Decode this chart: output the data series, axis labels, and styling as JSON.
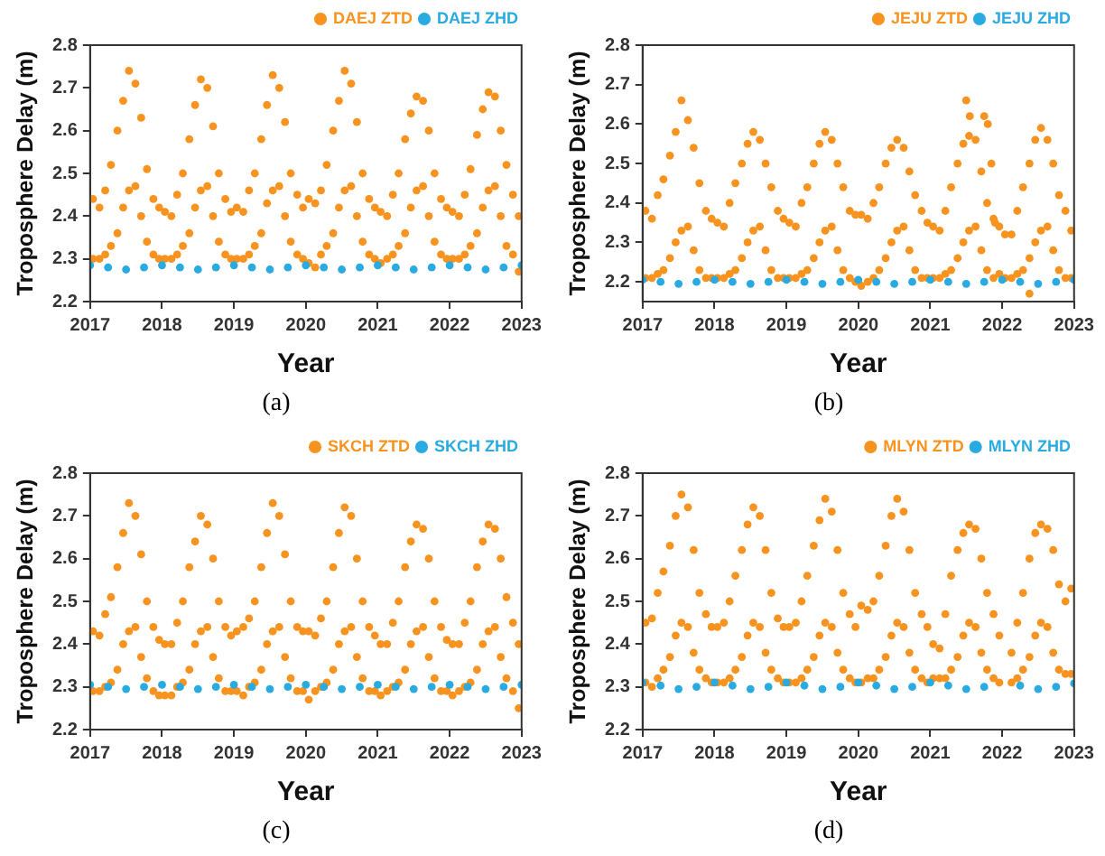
{
  "chart_data": [
    {
      "type": "scatter",
      "xlabel": "Year",
      "ylabel": "Troposphere Delay (m)",
      "annotations": [
        "(a)"
      ],
      "xlim": [
        2017,
        2023
      ],
      "xticks": [
        2017,
        2018,
        2019,
        2020,
        2021,
        2022,
        2023
      ],
      "ylim": [
        2.2,
        2.8
      ],
      "yticks": [
        2.2,
        2.3,
        2.4,
        2.5,
        2.6,
        2.7,
        2.8
      ],
      "legend": "top right",
      "marker": "circle",
      "series": [
        {
          "name": "DAEJ ZTD",
          "color": "#f7931e",
          "x": [
            2017.04,
            2017.04,
            2017.13,
            2017.13,
            2017.21,
            2017.21,
            2017.29,
            2017.29,
            2017.38,
            2017.38,
            2017.46,
            2017.46,
            2017.54,
            2017.54,
            2017.63,
            2017.63,
            2017.71,
            2017.71,
            2017.79,
            2017.79,
            2017.88,
            2017.88,
            2017.96,
            2017.96,
            2018.04,
            2018.04,
            2018.13,
            2018.13,
            2018.21,
            2018.21,
            2018.29,
            2018.29,
            2018.38,
            2018.38,
            2018.46,
            2018.46,
            2018.54,
            2018.54,
            2018.63,
            2018.63,
            2018.71,
            2018.71,
            2018.79,
            2018.79,
            2018.88,
            2018.88,
            2018.96,
            2018.96,
            2019.04,
            2019.04,
            2019.13,
            2019.13,
            2019.21,
            2019.21,
            2019.29,
            2019.29,
            2019.38,
            2019.38,
            2019.46,
            2019.46,
            2019.54,
            2019.54,
            2019.63,
            2019.63,
            2019.71,
            2019.71,
            2019.79,
            2019.79,
            2019.88,
            2019.88,
            2019.96,
            2019.96,
            2020.04,
            2020.04,
            2020.13,
            2020.13,
            2020.21,
            2020.21,
            2020.29,
            2020.29,
            2020.38,
            2020.38,
            2020.46,
            2020.46,
            2020.54,
            2020.54,
            2020.63,
            2020.63,
            2020.71,
            2020.71,
            2020.79,
            2020.79,
            2020.88,
            2020.88,
            2020.96,
            2020.96,
            2021.04,
            2021.04,
            2021.13,
            2021.13,
            2021.21,
            2021.21,
            2021.29,
            2021.29,
            2021.38,
            2021.38,
            2021.46,
            2021.46,
            2021.54,
            2021.54,
            2021.63,
            2021.63,
            2021.71,
            2021.71,
            2021.79,
            2021.79,
            2021.88,
            2021.88,
            2021.96,
            2021.96,
            2022.04,
            2022.04,
            2022.13,
            2022.13,
            2022.21,
            2022.21,
            2022.29,
            2022.29,
            2022.38,
            2022.38,
            2022.46,
            2022.46,
            2022.54,
            2022.54,
            2022.63,
            2022.63,
            2022.71,
            2022.71,
            2022.79,
            2022.79,
            2022.88,
            2022.88,
            2022.96,
            2022.96
          ],
          "values": [
            2.3,
            2.44,
            2.3,
            2.42,
            2.31,
            2.46,
            2.33,
            2.52,
            2.36,
            2.6,
            2.42,
            2.67,
            2.46,
            2.74,
            2.47,
            2.71,
            2.4,
            2.63,
            2.34,
            2.51,
            2.31,
            2.44,
            2.3,
            2.42,
            2.3,
            2.41,
            2.3,
            2.4,
            2.31,
            2.45,
            2.33,
            2.5,
            2.36,
            2.58,
            2.42,
            2.66,
            2.46,
            2.72,
            2.47,
            2.7,
            2.4,
            2.61,
            2.34,
            2.5,
            2.31,
            2.44,
            2.3,
            2.41,
            2.3,
            2.42,
            2.3,
            2.41,
            2.31,
            2.46,
            2.33,
            2.5,
            2.36,
            2.58,
            2.43,
            2.66,
            2.46,
            2.73,
            2.47,
            2.7,
            2.4,
            2.62,
            2.34,
            2.5,
            2.31,
            2.45,
            2.3,
            2.42,
            2.29,
            2.44,
            2.28,
            2.43,
            2.31,
            2.46,
            2.33,
            2.52,
            2.36,
            2.6,
            2.42,
            2.67,
            2.46,
            2.74,
            2.47,
            2.71,
            2.4,
            2.62,
            2.34,
            2.5,
            2.31,
            2.44,
            2.3,
            2.42,
            2.29,
            2.41,
            2.3,
            2.4,
            2.31,
            2.45,
            2.33,
            2.5,
            2.36,
            2.58,
            2.42,
            2.64,
            2.46,
            2.68,
            2.47,
            2.67,
            2.4,
            2.6,
            2.34,
            2.5,
            2.31,
            2.44,
            2.3,
            2.42,
            2.3,
            2.41,
            2.3,
            2.4,
            2.31,
            2.45,
            2.33,
            2.51,
            2.36,
            2.59,
            2.42,
            2.65,
            2.46,
            2.69,
            2.47,
            2.68,
            2.4,
            2.6,
            2.33,
            2.52,
            2.31,
            2.45,
            2.27,
            2.4
          ]
        },
        {
          "name": "DAEJ ZHD",
          "color": "#29abe2",
          "x": [
            2017,
            2017.25,
            2017.5,
            2017.75,
            2018,
            2018.25,
            2018.5,
            2018.75,
            2019,
            2019.25,
            2019.5,
            2019.75,
            2020,
            2020.25,
            2020.5,
            2020.75,
            2021,
            2021.25,
            2021.5,
            2021.75,
            2022,
            2022.25,
            2022.5,
            2022.75,
            2023
          ],
          "values": [
            2.285,
            2.28,
            2.275,
            2.28,
            2.285,
            2.28,
            2.275,
            2.28,
            2.285,
            2.28,
            2.275,
            2.28,
            2.285,
            2.28,
            2.275,
            2.28,
            2.285,
            2.28,
            2.275,
            2.28,
            2.285,
            2.28,
            2.275,
            2.28,
            2.285
          ]
        }
      ]
    },
    {
      "type": "scatter",
      "xlabel": "Year",
      "ylabel": "Troposphere Delay (m)",
      "annotations": [
        "(b)"
      ],
      "xlim": [
        2017,
        2023
      ],
      "xticks": [
        2017,
        2018,
        2019,
        2020,
        2021,
        2022,
        2023
      ],
      "ylim": [
        2.15,
        2.8
      ],
      "yticks": [
        2.2,
        2.3,
        2.4,
        2.5,
        2.6,
        2.7,
        2.8
      ],
      "legend": "top right",
      "marker": "circle",
      "series": [
        {
          "name": "JEJU ZTD",
          "color": "#f7931e",
          "x": [
            2017.04,
            2017.04,
            2017.13,
            2017.13,
            2017.21,
            2017.21,
            2017.29,
            2017.29,
            2017.38,
            2017.38,
            2017.46,
            2017.46,
            2017.54,
            2017.54,
            2017.63,
            2017.63,
            2017.71,
            2017.71,
            2017.79,
            2017.79,
            2017.88,
            2017.88,
            2017.96,
            2017.96,
            2018.04,
            2018.04,
            2018.13,
            2018.13,
            2018.21,
            2018.21,
            2018.29,
            2018.29,
            2018.38,
            2018.38,
            2018.46,
            2018.46,
            2018.54,
            2018.54,
            2018.63,
            2018.63,
            2018.71,
            2018.71,
            2018.79,
            2018.79,
            2018.88,
            2018.88,
            2018.96,
            2018.96,
            2019.04,
            2019.04,
            2019.13,
            2019.13,
            2019.21,
            2019.21,
            2019.29,
            2019.29,
            2019.38,
            2019.38,
            2019.46,
            2019.46,
            2019.54,
            2019.54,
            2019.63,
            2019.63,
            2019.71,
            2019.71,
            2019.79,
            2019.79,
            2019.88,
            2019.88,
            2019.96,
            2019.96,
            2020.04,
            2020.04,
            2020.13,
            2020.13,
            2020.21,
            2020.21,
            2020.29,
            2020.29,
            2020.38,
            2020.38,
            2020.46,
            2020.46,
            2020.54,
            2020.54,
            2020.63,
            2020.63,
            2020.71,
            2020.71,
            2020.79,
            2020.79,
            2020.88,
            2020.88,
            2020.96,
            2020.96,
            2021.04,
            2021.04,
            2021.13,
            2021.13,
            2021.21,
            2021.21,
            2021.29,
            2021.29,
            2021.38,
            2021.38,
            2021.46,
            2021.46,
            2021.54,
            2021.54,
            2021.63,
            2021.63,
            2021.71,
            2021.71,
            2021.79,
            2021.79,
            2021.88,
            2021.88,
            2021.96,
            2021.96,
            2022.04,
            2022.04,
            2022.13,
            2022.13,
            2022.21,
            2022.21,
            2022.29,
            2022.29,
            2022.38,
            2022.38,
            2022.46,
            2022.46,
            2022.54,
            2022.54,
            2022.63,
            2022.63,
            2022.71,
            2022.71,
            2022.79,
            2022.79,
            2022.88,
            2022.88,
            2022.96,
            2022.96,
            2021.5,
            2021.55,
            2021.75,
            2021.8,
            2021.85,
            2021.9,
            2022.38
          ],
          "values": [
            2.21,
            2.38,
            2.21,
            2.36,
            2.22,
            2.42,
            2.23,
            2.46,
            2.26,
            2.52,
            2.3,
            2.58,
            2.33,
            2.66,
            2.34,
            2.61,
            2.28,
            2.54,
            2.23,
            2.45,
            2.21,
            2.38,
            2.21,
            2.36,
            2.21,
            2.35,
            2.21,
            2.34,
            2.22,
            2.4,
            2.23,
            2.45,
            2.26,
            2.5,
            2.3,
            2.55,
            2.33,
            2.58,
            2.34,
            2.56,
            2.28,
            2.5,
            2.23,
            2.44,
            2.21,
            2.38,
            2.21,
            2.36,
            2.21,
            2.35,
            2.21,
            2.34,
            2.22,
            2.4,
            2.23,
            2.44,
            2.26,
            2.5,
            2.3,
            2.55,
            2.33,
            2.58,
            2.34,
            2.56,
            2.28,
            2.5,
            2.23,
            2.44,
            2.21,
            2.38,
            2.2,
            2.37,
            2.19,
            2.37,
            2.2,
            2.36,
            2.21,
            2.4,
            2.23,
            2.44,
            2.26,
            2.5,
            2.3,
            2.54,
            2.33,
            2.56,
            2.34,
            2.54,
            2.28,
            2.48,
            2.23,
            2.42,
            2.21,
            2.38,
            2.21,
            2.35,
            2.21,
            2.34,
            2.21,
            2.33,
            2.22,
            2.38,
            2.23,
            2.44,
            2.26,
            2.5,
            2.3,
            2.55,
            2.33,
            2.57,
            2.34,
            2.56,
            2.28,
            2.48,
            2.23,
            2.4,
            2.21,
            2.36,
            2.22,
            2.34,
            2.21,
            2.32,
            2.21,
            2.32,
            2.22,
            2.38,
            2.23,
            2.44,
            2.26,
            2.5,
            2.3,
            2.56,
            2.33,
            2.59,
            2.34,
            2.56,
            2.28,
            2.5,
            2.23,
            2.42,
            2.21,
            2.38,
            2.21,
            2.33,
            2.66,
            2.62,
            2.62,
            2.6,
            2.5,
            2.35,
            2.17
          ]
        },
        {
          "name": "JEJU ZHD",
          "color": "#29abe2",
          "x": [
            2017,
            2017.25,
            2017.5,
            2017.75,
            2018,
            2018.25,
            2018.5,
            2018.75,
            2019,
            2019.25,
            2019.5,
            2019.75,
            2020,
            2020.25,
            2020.5,
            2020.75,
            2021,
            2021.25,
            2021.5,
            2021.75,
            2022,
            2022.25,
            2022.5,
            2022.75,
            2023
          ],
          "values": [
            2.205,
            2.2,
            2.195,
            2.2,
            2.205,
            2.2,
            2.195,
            2.2,
            2.205,
            2.2,
            2.195,
            2.2,
            2.205,
            2.2,
            2.195,
            2.2,
            2.205,
            2.2,
            2.195,
            2.2,
            2.205,
            2.2,
            2.195,
            2.2,
            2.205
          ]
        }
      ]
    },
    {
      "type": "scatter",
      "xlabel": "Year",
      "ylabel": "Troposphere Delay (m)",
      "annotations": [
        "(c)"
      ],
      "xlim": [
        2017,
        2023
      ],
      "xticks": [
        2017,
        2018,
        2019,
        2020,
        2021,
        2022,
        2023
      ],
      "ylim": [
        2.2,
        2.8
      ],
      "yticks": [
        2.2,
        2.3,
        2.4,
        2.5,
        2.6,
        2.7,
        2.8
      ],
      "legend": "top right",
      "marker": "circle",
      "series": [
        {
          "name": "SKCH ZTD",
          "color": "#f7931e",
          "x": [
            2017.04,
            2017.04,
            2017.13,
            2017.13,
            2017.21,
            2017.21,
            2017.29,
            2017.29,
            2017.38,
            2017.38,
            2017.46,
            2017.46,
            2017.54,
            2017.54,
            2017.63,
            2017.63,
            2017.71,
            2017.71,
            2017.79,
            2017.79,
            2017.88,
            2017.88,
            2017.96,
            2017.96,
            2018.04,
            2018.04,
            2018.13,
            2018.13,
            2018.21,
            2018.21,
            2018.29,
            2018.29,
            2018.38,
            2018.38,
            2018.46,
            2018.46,
            2018.54,
            2018.54,
            2018.63,
            2018.63,
            2018.71,
            2018.71,
            2018.79,
            2018.79,
            2018.88,
            2018.88,
            2018.96,
            2018.96,
            2019.04,
            2019.04,
            2019.13,
            2019.13,
            2019.21,
            2019.21,
            2019.29,
            2019.29,
            2019.38,
            2019.38,
            2019.46,
            2019.46,
            2019.54,
            2019.54,
            2019.63,
            2019.63,
            2019.71,
            2019.71,
            2019.79,
            2019.79,
            2019.88,
            2019.88,
            2019.96,
            2019.96,
            2020.04,
            2020.04,
            2020.13,
            2020.13,
            2020.21,
            2020.21,
            2020.29,
            2020.29,
            2020.38,
            2020.38,
            2020.46,
            2020.46,
            2020.54,
            2020.54,
            2020.63,
            2020.63,
            2020.71,
            2020.71,
            2020.79,
            2020.79,
            2020.88,
            2020.88,
            2020.96,
            2020.96,
            2021.04,
            2021.04,
            2021.13,
            2021.13,
            2021.21,
            2021.21,
            2021.29,
            2021.29,
            2021.38,
            2021.38,
            2021.46,
            2021.46,
            2021.54,
            2021.54,
            2021.63,
            2021.63,
            2021.71,
            2021.71,
            2021.79,
            2021.79,
            2021.88,
            2021.88,
            2021.96,
            2021.96,
            2022.04,
            2022.04,
            2022.13,
            2022.13,
            2022.21,
            2022.21,
            2022.29,
            2022.29,
            2022.38,
            2022.38,
            2022.46,
            2022.46,
            2022.54,
            2022.54,
            2022.63,
            2022.63,
            2022.71,
            2022.71,
            2022.79,
            2022.79,
            2022.88,
            2022.88,
            2022.96,
            2022.96
          ],
          "values": [
            2.29,
            2.43,
            2.29,
            2.42,
            2.3,
            2.47,
            2.31,
            2.51,
            2.34,
            2.58,
            2.4,
            2.66,
            2.43,
            2.73,
            2.44,
            2.7,
            2.37,
            2.61,
            2.32,
            2.5,
            2.29,
            2.44,
            2.28,
            2.41,
            2.28,
            2.4,
            2.28,
            2.4,
            2.3,
            2.45,
            2.31,
            2.5,
            2.34,
            2.58,
            2.4,
            2.64,
            2.43,
            2.7,
            2.44,
            2.68,
            2.37,
            2.6,
            2.32,
            2.5,
            2.29,
            2.44,
            2.29,
            2.42,
            2.29,
            2.43,
            2.28,
            2.44,
            2.3,
            2.46,
            2.31,
            2.5,
            2.34,
            2.58,
            2.4,
            2.66,
            2.43,
            2.73,
            2.44,
            2.7,
            2.37,
            2.61,
            2.32,
            2.5,
            2.29,
            2.44,
            2.29,
            2.43,
            2.27,
            2.43,
            2.29,
            2.42,
            2.3,
            2.46,
            2.31,
            2.5,
            2.34,
            2.58,
            2.4,
            2.66,
            2.43,
            2.72,
            2.44,
            2.7,
            2.37,
            2.6,
            2.32,
            2.5,
            2.29,
            2.44,
            2.29,
            2.42,
            2.28,
            2.4,
            2.29,
            2.4,
            2.3,
            2.45,
            2.31,
            2.5,
            2.34,
            2.58,
            2.4,
            2.64,
            2.43,
            2.68,
            2.44,
            2.67,
            2.37,
            2.6,
            2.32,
            2.5,
            2.29,
            2.44,
            2.29,
            2.41,
            2.28,
            2.4,
            2.29,
            2.4,
            2.3,
            2.45,
            2.31,
            2.5,
            2.34,
            2.58,
            2.4,
            2.64,
            2.43,
            2.68,
            2.44,
            2.67,
            2.37,
            2.6,
            2.32,
            2.51,
            2.29,
            2.45,
            2.25,
            2.4
          ]
        },
        {
          "name": "SKCH ZHD",
          "color": "#29abe2",
          "x": [
            2017,
            2017.25,
            2017.5,
            2017.75,
            2018,
            2018.25,
            2018.5,
            2018.75,
            2019,
            2019.25,
            2019.5,
            2019.75,
            2020,
            2020.25,
            2020.5,
            2020.75,
            2021,
            2021.25,
            2021.5,
            2021.75,
            2022,
            2022.25,
            2022.5,
            2022.75,
            2023
          ],
          "values": [
            2.305,
            2.3,
            2.295,
            2.3,
            2.305,
            2.3,
            2.295,
            2.3,
            2.305,
            2.3,
            2.295,
            2.3,
            2.305,
            2.3,
            2.295,
            2.3,
            2.305,
            2.3,
            2.295,
            2.3,
            2.305,
            2.3,
            2.295,
            2.3,
            2.305
          ]
        }
      ]
    },
    {
      "type": "scatter",
      "xlabel": "Year",
      "ylabel": "Troposphere Delay (m)",
      "annotations": [
        "(d)"
      ],
      "xlim": [
        2017,
        2023
      ],
      "xticks": [
        2017,
        2018,
        2019,
        2020,
        2021,
        2022,
        2023
      ],
      "ylim": [
        2.2,
        2.8
      ],
      "yticks": [
        2.2,
        2.3,
        2.4,
        2.5,
        2.6,
        2.7,
        2.8
      ],
      "legend": "top right",
      "marker": "circle",
      "series": [
        {
          "name": "MLYN ZTD",
          "color": "#f7931e",
          "x": [
            2017.04,
            2017.04,
            2017.13,
            2017.13,
            2017.21,
            2017.21,
            2017.29,
            2017.29,
            2017.38,
            2017.38,
            2017.46,
            2017.46,
            2017.54,
            2017.54,
            2017.63,
            2017.63,
            2017.71,
            2017.71,
            2017.79,
            2017.79,
            2017.88,
            2017.88,
            2017.96,
            2017.96,
            2018.04,
            2018.04,
            2018.13,
            2018.13,
            2018.21,
            2018.21,
            2018.29,
            2018.29,
            2018.38,
            2018.38,
            2018.46,
            2018.46,
            2018.54,
            2018.54,
            2018.63,
            2018.63,
            2018.71,
            2018.71,
            2018.79,
            2018.79,
            2018.88,
            2018.88,
            2018.96,
            2018.96,
            2019.04,
            2019.04,
            2019.13,
            2019.13,
            2019.21,
            2019.21,
            2019.29,
            2019.29,
            2019.38,
            2019.38,
            2019.46,
            2019.46,
            2019.54,
            2019.54,
            2019.63,
            2019.63,
            2019.71,
            2019.71,
            2019.79,
            2019.79,
            2019.88,
            2019.88,
            2019.96,
            2019.96,
            2020.04,
            2020.04,
            2020.13,
            2020.13,
            2020.21,
            2020.21,
            2020.29,
            2020.29,
            2020.38,
            2020.38,
            2020.46,
            2020.46,
            2020.54,
            2020.54,
            2020.63,
            2020.63,
            2020.71,
            2020.71,
            2020.79,
            2020.79,
            2020.88,
            2020.88,
            2020.96,
            2020.96,
            2021.04,
            2021.04,
            2021.13,
            2021.13,
            2021.21,
            2021.21,
            2021.29,
            2021.29,
            2021.38,
            2021.38,
            2021.46,
            2021.46,
            2021.54,
            2021.54,
            2021.63,
            2021.63,
            2021.71,
            2021.71,
            2021.79,
            2021.79,
            2021.88,
            2021.88,
            2021.96,
            2021.96,
            2022.13,
            2022.13,
            2022.21,
            2022.21,
            2022.29,
            2022.29,
            2022.38,
            2022.38,
            2022.46,
            2022.46,
            2022.54,
            2022.54,
            2022.63,
            2022.63,
            2022.71,
            2022.71,
            2022.79,
            2022.79,
            2022.88,
            2022.88,
            2022.96,
            2022.96
          ],
          "values": [
            2.31,
            2.45,
            2.3,
            2.46,
            2.32,
            2.52,
            2.34,
            2.57,
            2.37,
            2.63,
            2.42,
            2.7,
            2.45,
            2.75,
            2.44,
            2.72,
            2.38,
            2.62,
            2.34,
            2.52,
            2.32,
            2.47,
            2.31,
            2.44,
            2.31,
            2.44,
            2.31,
            2.45,
            2.32,
            2.5,
            2.34,
            2.56,
            2.37,
            2.62,
            2.42,
            2.68,
            2.45,
            2.72,
            2.44,
            2.7,
            2.38,
            2.62,
            2.34,
            2.52,
            2.32,
            2.46,
            2.31,
            2.44,
            2.31,
            2.44,
            2.31,
            2.45,
            2.32,
            2.5,
            2.34,
            2.56,
            2.37,
            2.63,
            2.42,
            2.69,
            2.45,
            2.74,
            2.44,
            2.71,
            2.38,
            2.62,
            2.34,
            2.52,
            2.32,
            2.47,
            2.31,
            2.44,
            2.31,
            2.49,
            2.32,
            2.48,
            2.32,
            2.5,
            2.34,
            2.56,
            2.37,
            2.63,
            2.42,
            2.7,
            2.45,
            2.74,
            2.44,
            2.71,
            2.38,
            2.62,
            2.34,
            2.52,
            2.32,
            2.47,
            2.31,
            2.44,
            2.32,
            2.4,
            2.32,
            2.39,
            2.32,
            2.47,
            2.34,
            2.56,
            2.37,
            2.62,
            2.42,
            2.66,
            2.45,
            2.68,
            2.44,
            2.67,
            2.38,
            2.6,
            2.34,
            2.52,
            2.32,
            2.47,
            2.31,
            2.42,
            2.31,
            2.38,
            2.32,
            2.45,
            2.34,
            2.52,
            2.37,
            2.6,
            2.42,
            2.66,
            2.45,
            2.68,
            2.44,
            2.67,
            2.38,
            2.62,
            2.34,
            2.54,
            2.33,
            2.5,
            2.33,
            2.53
          ]
        },
        {
          "name": "MLYN ZHD",
          "color": "#29abe2",
          "x": [
            2017,
            2017.25,
            2017.5,
            2017.75,
            2018,
            2018.25,
            2018.5,
            2018.75,
            2019,
            2019.25,
            2019.5,
            2019.75,
            2020,
            2020.25,
            2020.5,
            2020.75,
            2021,
            2021.25,
            2021.5,
            2021.75,
            2022.25,
            2022.5,
            2022.75,
            2023
          ],
          "values": [
            2.31,
            2.303,
            2.295,
            2.3,
            2.31,
            2.303,
            2.295,
            2.3,
            2.31,
            2.303,
            2.295,
            2.3,
            2.31,
            2.303,
            2.295,
            2.3,
            2.31,
            2.303,
            2.295,
            2.3,
            2.303,
            2.295,
            2.3,
            2.308
          ]
        }
      ]
    }
  ]
}
